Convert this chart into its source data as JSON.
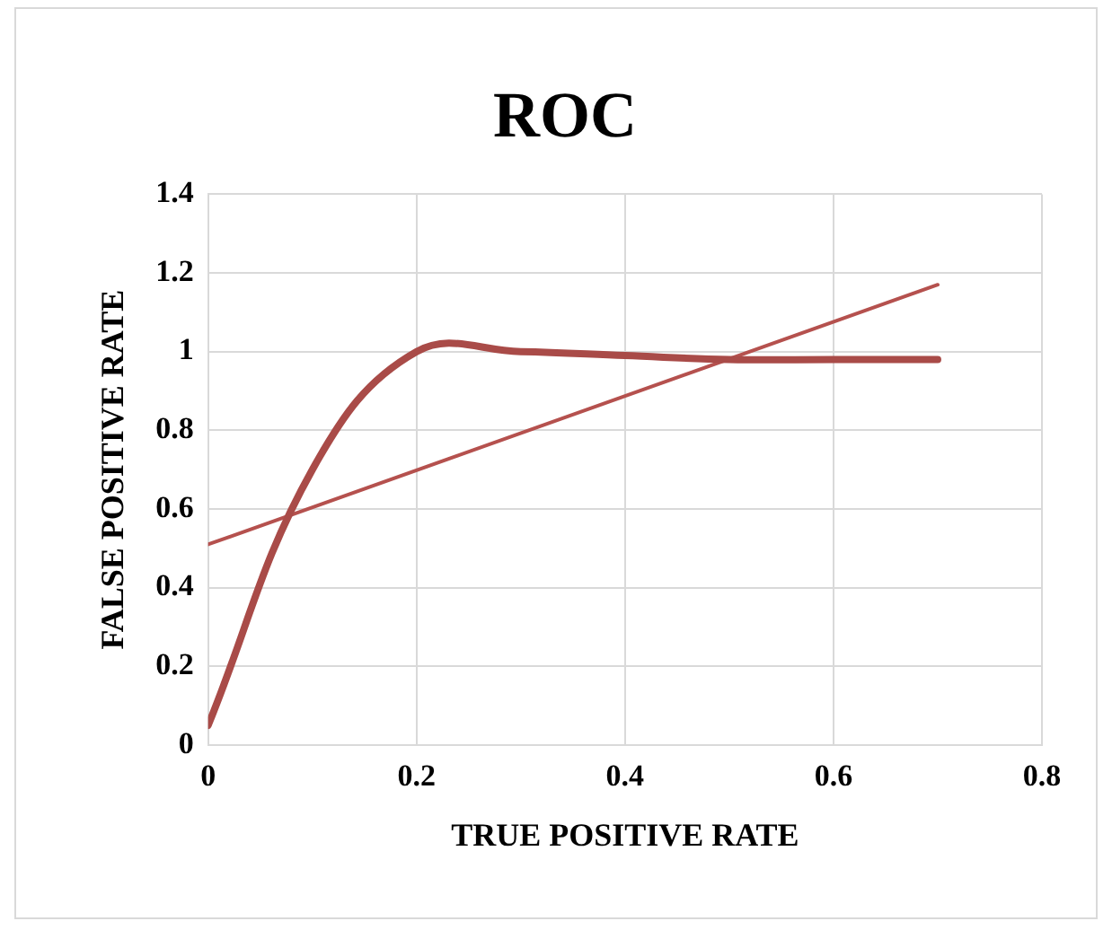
{
  "chart_data": {
    "type": "line",
    "title": "ROC",
    "xlabel": "TRUE POSITIVE RATE",
    "ylabel": "FALSE POSITIVE RATE",
    "x": [
      0,
      0.1,
      0.2,
      0.3,
      0.4,
      0.5,
      0.6,
      0.7
    ],
    "series": [
      {
        "color": "#a94b48",
        "values": [
          0.05,
          0.7,
          1,
          1,
          0.99,
          0.98,
          0.98,
          0.98
        ]
      },
      {
        "color": "#b5514e",
        "x": [
          0,
          0.7
        ],
        "values": [
          0.51,
          1.17
        ]
      }
    ],
    "xlim": [
      0,
      0.8
    ],
    "xticks": [
      0,
      0.2,
      0.4,
      0.6,
      0.8
    ],
    "ylim": [
      0,
      1.4
    ],
    "yticks": [
      0,
      0.2,
      0.4,
      0.6,
      0.8,
      1,
      1.2,
      1.4
    ],
    "grid": true,
    "legend": false,
    "marker": "none",
    "line_style": "solid"
  }
}
